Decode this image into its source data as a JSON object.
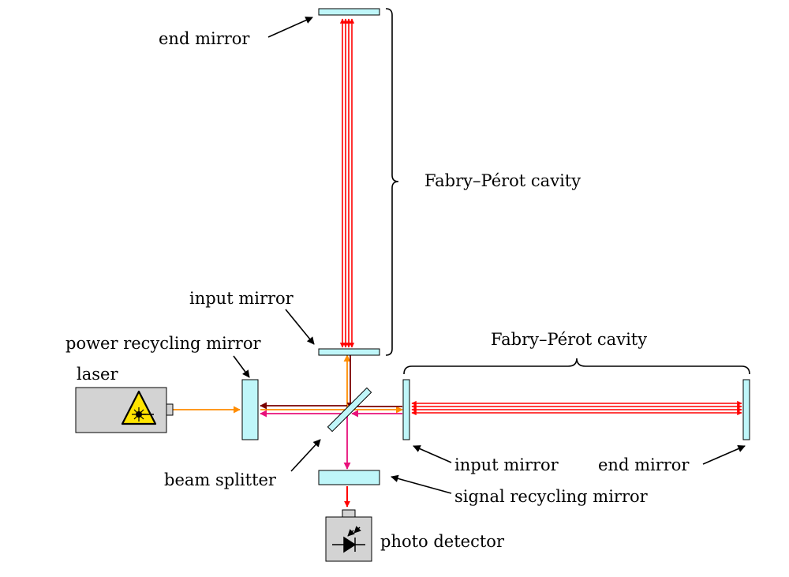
{
  "labels": {
    "end_mirror_top": "end mirror",
    "fp_cavity_vertical": "Fabry–Pérot cavity",
    "input_mirror_top": "input mirror",
    "power_recycling_mirror": "power recycling mirror",
    "fp_cavity_horizontal": "Fabry–Pérot cavity",
    "laser": "laser",
    "input_mirror_right": "input mirror",
    "end_mirror_right": "end mirror",
    "beam_splitter": "beam splitter",
    "signal_recycling_mirror": "signal recycling mirror",
    "photo_detector": "photo detector"
  },
  "colors": {
    "mirror_fill": "#bff6f9",
    "cavity_beam": "#ff0000",
    "laser_beam": "#ff8c00",
    "return_beam_dark": "#7a0000",
    "signal_beam": "#e8107a",
    "device_gray": "#d3d3d3",
    "warning_yellow": "#ffe400"
  },
  "icons": {
    "laser_warning": "laser-warning-icon",
    "photodiode": "photodiode-icon"
  }
}
